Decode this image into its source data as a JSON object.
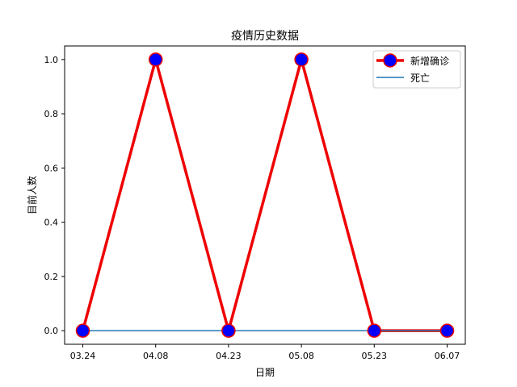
{
  "chart_data": {
    "type": "line",
    "title": "疫情历史数据",
    "xlabel": "日期",
    "ylabel": "目前人数",
    "categories": [
      "03.24",
      "04.08",
      "04.23",
      "05.08",
      "05.23",
      "06.07"
    ],
    "yticks": [
      "0.0",
      "0.2",
      "0.4",
      "0.6",
      "0.8",
      "1.0"
    ],
    "ylim": [
      -0.05,
      1.05
    ],
    "grid": false,
    "legend_position": "top-right",
    "series": [
      {
        "name": "新增确诊",
        "values": [
          0,
          1,
          0,
          1,
          0,
          0
        ],
        "line_color": "#ee0000",
        "marker_face": "#0000ff",
        "marker_edge": "#ee0000"
      },
      {
        "name": "死亡",
        "values": [
          0,
          0,
          0,
          0,
          0,
          0
        ],
        "line_color": "#1f77b4"
      }
    ]
  }
}
